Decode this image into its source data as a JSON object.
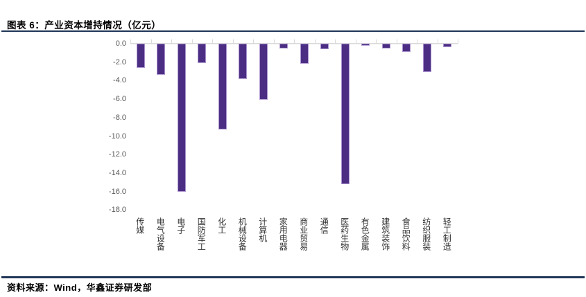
{
  "page": {
    "title": "图表 6：产业资本增持情况（亿元）",
    "source": "资料来源：Wind，华鑫证券研发部"
  },
  "colors": {
    "bar_fill": "#4B2E83",
    "bar_border": "#AC94CF",
    "divider": "#1F3557",
    "axis_line": "#DEDEDE",
    "tick_label": "#595959",
    "category_label": "#333333"
  },
  "chart_data": {
    "type": "bar",
    "title": "产业资本增持情况（亿元）",
    "categories": [
      "传媒",
      "电气设备",
      "电子",
      "国防军工",
      "化工",
      "机械设备",
      "计算机",
      "家用电器",
      "商业贸易",
      "通信",
      "医药生物",
      "有色金属",
      "建筑装饰",
      "食品饮料",
      "纺织服装",
      "轻工制造"
    ],
    "values": [
      -2.6,
      -3.4,
      -16.0,
      -2.1,
      -9.3,
      -3.8,
      -6.1,
      -0.5,
      -2.2,
      -0.6,
      -15.2,
      -0.2,
      -0.5,
      -0.9,
      -3.1,
      -0.4
    ],
    "xlabel": "",
    "ylabel": "",
    "ylim": [
      -18,
      0
    ],
    "ytick_labels": [
      "0.0",
      "-2.0",
      "-4.0",
      "-6.0",
      "-8.0",
      "-10.0",
      "-12.0",
      "-14.0",
      "-16.0",
      "-18.0"
    ],
    "grid": false,
    "legend": "none",
    "bar_color": "#4B2E83"
  }
}
